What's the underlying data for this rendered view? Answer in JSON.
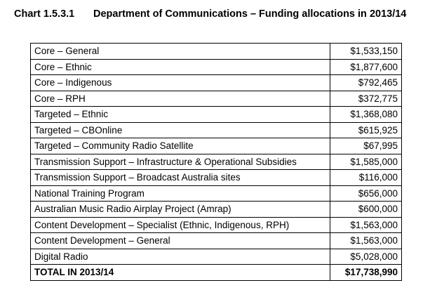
{
  "title": {
    "number": "Chart 1.5.3.1",
    "text": "Department of Communications – Funding allocations in 2013/14"
  },
  "rows": [
    {
      "label": "Core – General",
      "amount": "$1,533,150"
    },
    {
      "label": "Core – Ethnic",
      "amount": "$1,877,600"
    },
    {
      "label": "Core – Indigenous",
      "amount": "$792,465"
    },
    {
      "label": "Core – RPH",
      "amount": "$372,775"
    },
    {
      "label": "Targeted – Ethnic",
      "amount": "$1,368,080"
    },
    {
      "label": "Targeted – CBOnline",
      "amount": "$615,925"
    },
    {
      "label": "Targeted – Community Radio Satellite",
      "amount": "$67,995"
    },
    {
      "label": "Transmission Support – Infrastructure & Operational Subsidies",
      "amount": "$1,585,000"
    },
    {
      "label": "Transmission Support – Broadcast Australia sites",
      "amount": "$116,000"
    },
    {
      "label": "National Training Program",
      "amount": "$656,000"
    },
    {
      "label": "Australian Music Radio Airplay Project (Amrap)",
      "amount": "$600,000"
    },
    {
      "label": "Content Development – Specialist (Ethnic, Indigenous, RPH)",
      "amount": "$1,563,000"
    },
    {
      "label": "Content Development – General",
      "amount": "$1,563,000"
    },
    {
      "label": "Digital Radio",
      "amount": "$5,028,000"
    }
  ],
  "total": {
    "label": "TOTAL IN 2013/14",
    "amount": "$17,738,990"
  }
}
